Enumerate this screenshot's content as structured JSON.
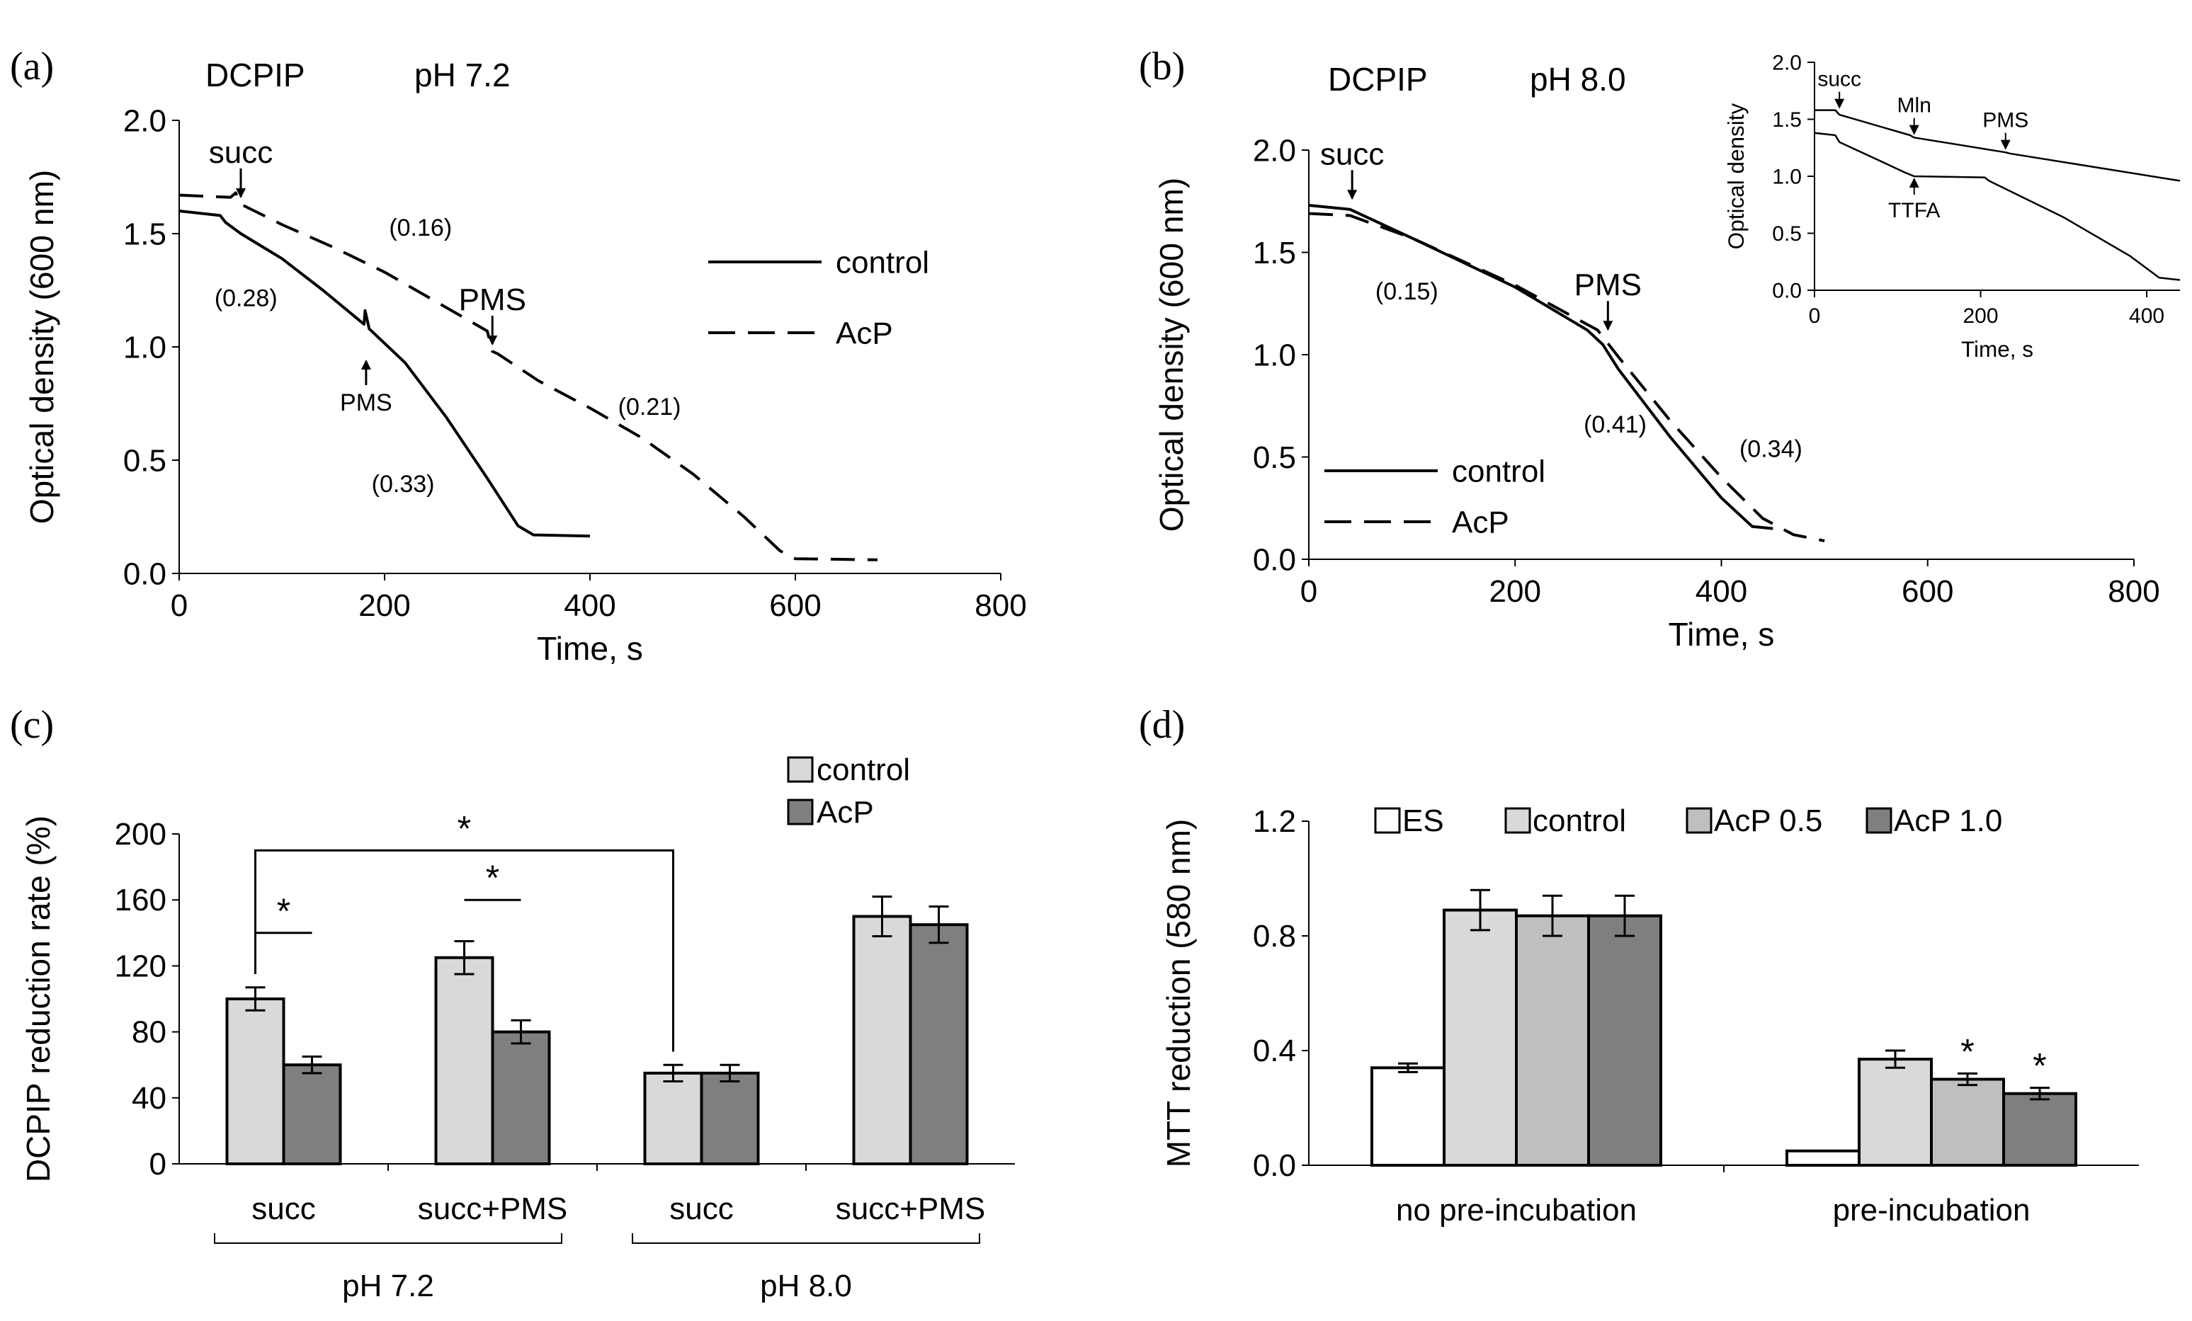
{
  "panels": {
    "a": {
      "label": "(a)",
      "reagent": "DCPIP",
      "ph": "pH 7.2"
    },
    "b": {
      "label": "(b)",
      "reagent": "DCPIP",
      "ph": "pH 8.0"
    },
    "c": {
      "label": "(c)"
    },
    "d": {
      "label": "(d)"
    }
  },
  "colors": {
    "control": "#d9d9d9",
    "acp": "#7f7f7f",
    "es": "#ffffff",
    "acp05": "#bfbfbf",
    "acp10": "#7f7f7f"
  },
  "chart_data": [
    {
      "id": "a",
      "type": "line",
      "xlabel": "Time, s",
      "ylabel": "Optical density (600 nm)",
      "xlim": [
        0,
        800
      ],
      "ylim": [
        0,
        2.0
      ],
      "xticks": [
        0,
        200,
        400,
        600,
        800
      ],
      "yticks": [
        0.0,
        0.5,
        1.0,
        1.5,
        2.0
      ],
      "legend": [
        "control",
        "AcP"
      ],
      "series": [
        {
          "name": "control",
          "style": "solid",
          "points": [
            [
              0,
              1.6
            ],
            [
              40,
              1.58
            ],
            [
              45,
              1.55
            ],
            [
              60,
              1.5
            ],
            [
              100,
              1.39
            ],
            [
              140,
              1.25
            ],
            [
              180,
              1.1
            ],
            [
              181,
              1.16
            ],
            [
              185,
              1.08
            ],
            [
              220,
              0.93
            ],
            [
              260,
              0.69
            ],
            [
              300,
              0.42
            ],
            [
              330,
              0.21
            ],
            [
              345,
              0.17
            ],
            [
              400,
              0.165
            ]
          ]
        },
        {
          "name": "AcP",
          "style": "dashed",
          "points": [
            [
              0,
              1.67
            ],
            [
              50,
              1.66
            ],
            [
              55,
              1.68
            ],
            [
              60,
              1.63
            ],
            [
              100,
              1.54
            ],
            [
              150,
              1.44
            ],
            [
              200,
              1.33
            ],
            [
              250,
              1.2
            ],
            [
              300,
              1.07
            ],
            [
              305,
              0.98
            ],
            [
              310,
              0.97
            ],
            [
              350,
              0.85
            ],
            [
              400,
              0.73
            ],
            [
              450,
              0.6
            ],
            [
              500,
              0.44
            ],
            [
              550,
              0.25
            ],
            [
              585,
              0.1
            ],
            [
              600,
              0.065
            ],
            [
              680,
              0.06
            ]
          ]
        }
      ],
      "annotations": [
        {
          "text": "succ",
          "x": 60,
          "y": 1.65,
          "arrow": "down",
          "big": true
        },
        {
          "text": "PMS",
          "x": 305,
          "y": 1.0,
          "arrow": "down",
          "big": true
        },
        {
          "text": "PMS",
          "x": 182,
          "y": 0.95,
          "arrow": "up",
          "big": false
        },
        {
          "text": "(0.16)",
          "x": 235,
          "y": 1.49
        },
        {
          "text": "(0.28)",
          "x": 65,
          "y": 1.18
        },
        {
          "text": "(0.21)",
          "x": 458,
          "y": 0.7
        },
        {
          "text": "(0.33)",
          "x": 218,
          "y": 0.36
        }
      ]
    },
    {
      "id": "b",
      "type": "line",
      "xlabel": "Time, s",
      "ylabel": "Optical density (600 nm)",
      "xlim": [
        0,
        800
      ],
      "ylim": [
        0,
        2.0
      ],
      "xticks": [
        0,
        200,
        400,
        600,
        800
      ],
      "yticks": [
        0.0,
        0.5,
        1.0,
        1.5,
        2.0
      ],
      "legend": [
        "control",
        "AcP"
      ],
      "series": [
        {
          "name": "control",
          "style": "solid",
          "points": [
            [
              0,
              1.73
            ],
            [
              40,
              1.71
            ],
            [
              100,
              1.57
            ],
            [
              200,
              1.33
            ],
            [
              270,
              1.12
            ],
            [
              285,
              1.05
            ],
            [
              300,
              0.93
            ],
            [
              350,
              0.6
            ],
            [
              400,
              0.3
            ],
            [
              430,
              0.16
            ],
            [
              450,
              0.15
            ]
          ]
        },
        {
          "name": "AcP",
          "style": "dashed",
          "points": [
            [
              0,
              1.69
            ],
            [
              40,
              1.68
            ],
            [
              100,
              1.57
            ],
            [
              200,
              1.34
            ],
            [
              280,
              1.12
            ],
            [
              300,
              0.99
            ],
            [
              350,
              0.68
            ],
            [
              400,
              0.4
            ],
            [
              440,
              0.2
            ],
            [
              470,
              0.12
            ],
            [
              500,
              0.09
            ]
          ]
        }
      ],
      "annotations": [
        {
          "text": "succ",
          "x": 42,
          "y": 1.75,
          "arrow": "down",
          "big": true
        },
        {
          "text": "PMS",
          "x": 290,
          "y": 1.11,
          "arrow": "down",
          "big": true
        },
        {
          "text": "(0.15)",
          "x": 95,
          "y": 1.27
        },
        {
          "text": "(0.41)",
          "x": 297,
          "y": 0.62
        },
        {
          "text": "(0.34)",
          "x": 448,
          "y": 0.5
        }
      ],
      "inset": {
        "type": "line",
        "xlabel": "Time, s",
        "ylabel": "Optical density",
        "xlim": [
          0,
          440
        ],
        "ylim": [
          0,
          2.0
        ],
        "xticks": [
          0,
          200,
          400
        ],
        "yticks": [
          0,
          0.5,
          1.0,
          1.5,
          2.0
        ],
        "series": [
          {
            "name": "upper",
            "points": [
              [
                0,
                1.58
              ],
              [
                25,
                1.58
              ],
              [
                30,
                1.54
              ],
              [
                115,
                1.36
              ],
              [
                120,
                1.34
              ],
              [
                230,
                1.21
              ],
              [
                235,
                1.2
              ],
              [
                440,
                0.96
              ]
            ]
          },
          {
            "name": "lower",
            "points": [
              [
                0,
                1.38
              ],
              [
                25,
                1.36
              ],
              [
                30,
                1.3
              ],
              [
                110,
                1.03
              ],
              [
                120,
                1.0
              ],
              [
                205,
                0.99
              ],
              [
                210,
                0.96
              ],
              [
                300,
                0.64
              ],
              [
                380,
                0.3
              ],
              [
                415,
                0.11
              ],
              [
                440,
                0.09
              ]
            ]
          }
        ],
        "annotations": [
          {
            "text": "succ",
            "x": 30,
            "y": 1.58,
            "arrow": "down"
          },
          {
            "text": "Mln",
            "x": 120,
            "y": 1.35,
            "arrow": "down"
          },
          {
            "text": "PMS",
            "x": 230,
            "y": 1.22,
            "arrow": "down"
          },
          {
            "text": "TTFA",
            "x": 120,
            "y": 1.0,
            "arrow": "up"
          }
        ]
      }
    },
    {
      "id": "c",
      "type": "bar",
      "ylabel": "DCPIP reduction rate (%)",
      "ylim": [
        0,
        200
      ],
      "yticks": [
        0,
        40,
        80,
        120,
        160,
        200
      ],
      "categories": [
        "succ",
        "succ+PMS",
        "succ",
        "succ+PMS"
      ],
      "groups": [
        {
          "label": "pH 7.2",
          "from": 0,
          "to": 1
        },
        {
          "label": "pH 8.0",
          "from": 2,
          "to": 3
        }
      ],
      "series": [
        {
          "name": "control",
          "values": [
            100,
            125,
            55,
            150
          ],
          "errors": [
            7,
            10,
            5,
            12
          ]
        },
        {
          "name": "AcP",
          "values": [
            60,
            80,
            55,
            145
          ],
          "errors": [
            5,
            7,
            5,
            11
          ]
        }
      ],
      "significance": [
        {
          "text": "*",
          "from": "0.control",
          "to": "0.AcP",
          "y": 140
        },
        {
          "text": "*",
          "from": "1.control",
          "to": "1.AcP",
          "y": 160
        },
        {
          "text": "*",
          "from": "0.control",
          "to": "2.control",
          "y": 190
        }
      ]
    },
    {
      "id": "d",
      "type": "bar",
      "ylabel": "MTT reduction (580 nm)",
      "ylim": [
        0,
        1.2
      ],
      "yticks": [
        0.0,
        0.4,
        0.8,
        1.2
      ],
      "categories": [
        "no pre-incubation",
        "pre-incubation"
      ],
      "series": [
        {
          "name": "ES",
          "values": [
            0.34,
            0.05
          ],
          "errors": [
            0.015,
            0
          ]
        },
        {
          "name": "control",
          "values": [
            0.89,
            0.37
          ],
          "errors": [
            0.07,
            0.03
          ]
        },
        {
          "name": "AcP 0.5",
          "values": [
            0.87,
            0.3
          ],
          "errors": [
            0.07,
            0.02
          ]
        },
        {
          "name": "AcP 1.0",
          "values": [
            0.87,
            0.25
          ],
          "errors": [
            0.07,
            0.02
          ]
        }
      ],
      "marks": [
        {
          "category": 1,
          "series": 2,
          "text": "*"
        },
        {
          "category": 1,
          "series": 3,
          "text": "*"
        }
      ]
    }
  ]
}
